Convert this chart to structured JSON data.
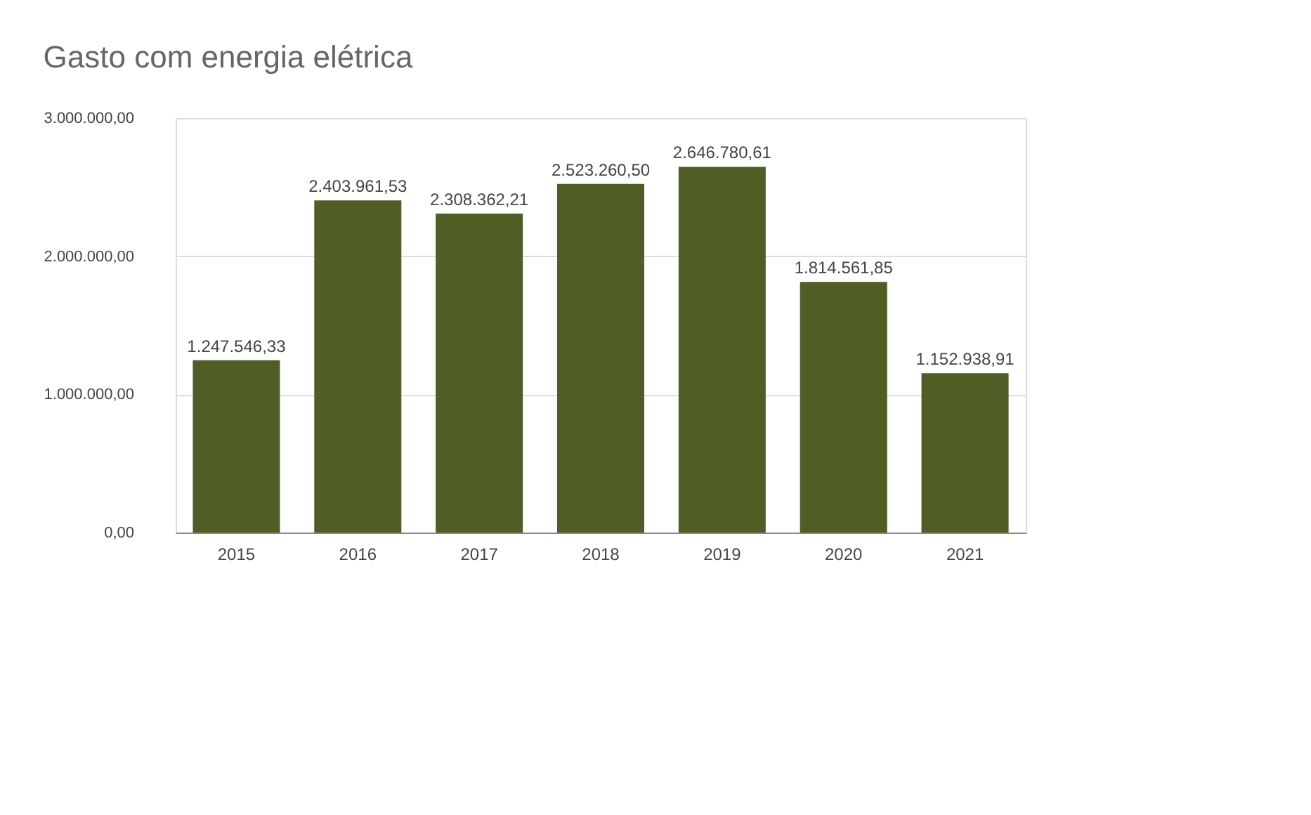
{
  "chart_data": {
    "type": "bar",
    "title": "Gasto com energia elétrica",
    "categories": [
      "2015",
      "2016",
      "2017",
      "2018",
      "2019",
      "2020",
      "2021"
    ],
    "values": [
      1247546.33,
      2403961.53,
      2308362.21,
      2523260.5,
      2646780.61,
      1814561.85,
      1152938.91
    ],
    "value_labels": [
      "1.247.546,33",
      "2.403.961,53",
      "2.308.362,21",
      "2.523.260,50",
      "2.646.780,61",
      "1.814.561,85",
      "1.152.938,91"
    ],
    "color": "#4e5e24",
    "ylim": [
      0,
      3000000
    ],
    "yticks": [
      {
        "value": 0,
        "label": "0,00"
      },
      {
        "value": 1000000,
        "label": "1.000.000,00"
      },
      {
        "value": 2000000,
        "label": "2.000.000,00"
      },
      {
        "value": 3000000,
        "label": "3.000.000,00"
      }
    ],
    "grid": "y"
  }
}
